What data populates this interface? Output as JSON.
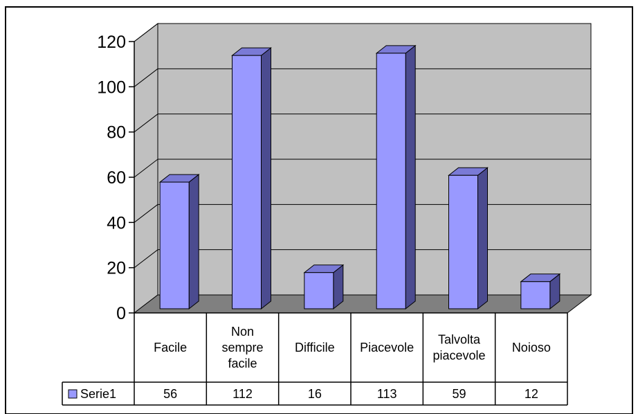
{
  "chart_data": {
    "type": "bar",
    "categories": [
      [
        "Facile"
      ],
      [
        "Non",
        "sempre",
        "facile"
      ],
      [
        "Difficile"
      ],
      [
        "Piacevole"
      ],
      [
        "Talvolta",
        "piacevole"
      ],
      [
        "Noioso"
      ]
    ],
    "series": [
      {
        "name": "Serie1",
        "values": [
          56,
          112,
          16,
          113,
          59,
          12
        ]
      }
    ],
    "y_ticks": [
      "0",
      "20",
      "40",
      "60",
      "80",
      "100",
      "120"
    ],
    "ylim": [
      0,
      120
    ],
    "grid": true,
    "legend": "data-table-left",
    "colors": {
      "bar_front": "#9999ff",
      "bar_side": "#4b4b8f",
      "bar_top": "#7a7ad6",
      "back_wall": "#c0c0c0",
      "floor": "#808080",
      "gridline": "#000000"
    }
  }
}
